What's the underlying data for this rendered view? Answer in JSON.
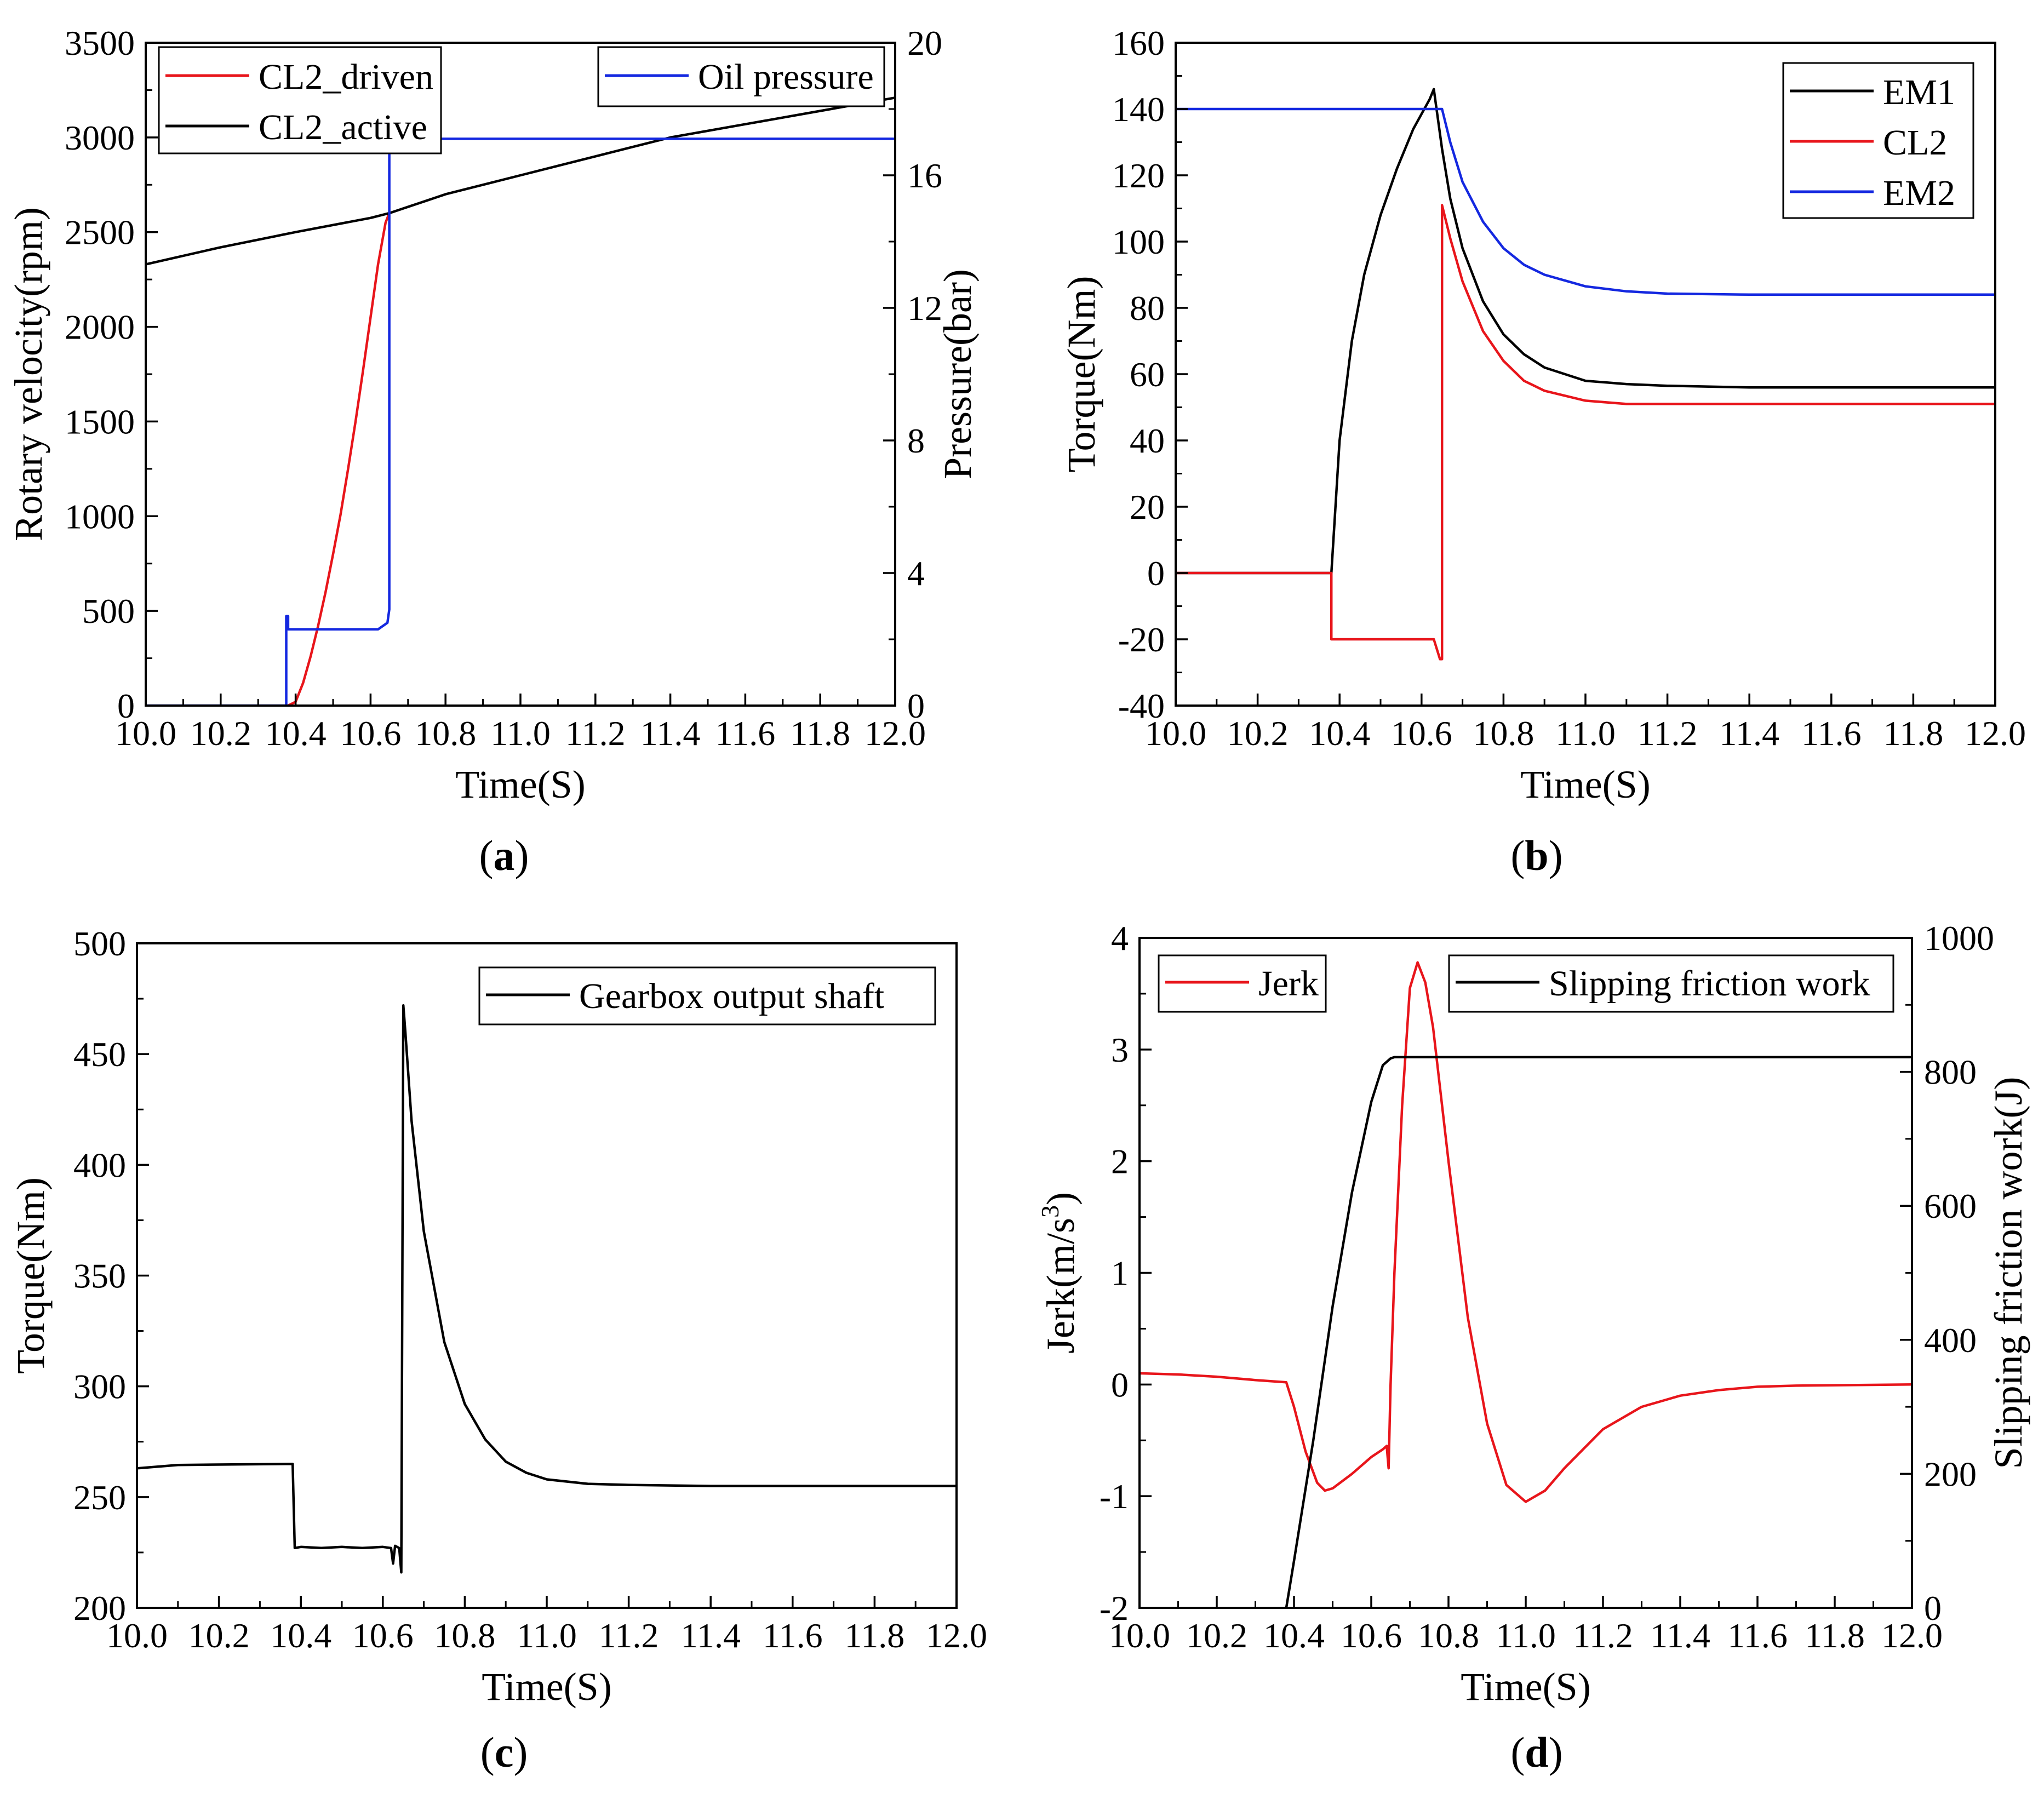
{
  "chart_data": [
    {
      "id": "a",
      "type": "line",
      "caption_letter": "a",
      "xlabel": "Time(S)",
      "xlim": [
        10.0,
        12.0
      ],
      "xticks": [
        "10.0",
        "10.2",
        "10.4",
        "10.6",
        "10.8",
        "11.0",
        "11.2",
        "11.4",
        "11.6",
        "11.8",
        "12.0"
      ],
      "ylabel": "Rotary velocity(rpm)",
      "ylim": [
        0,
        3500
      ],
      "yticks": [
        "0",
        "500",
        "1000",
        "1500",
        "2000",
        "2500",
        "3000",
        "3500"
      ],
      "y2label": "Pressure(bar)",
      "y2lim": [
        0,
        20
      ],
      "y2ticks": [
        "0",
        "4",
        "8",
        "12",
        "16",
        "20"
      ],
      "series": [
        {
          "name": "CL2_driven",
          "color": "#e8151b",
          "axis": "y",
          "x": [
            10.38,
            10.4,
            10.42,
            10.44,
            10.46,
            10.48,
            10.5,
            10.52,
            10.54,
            10.56,
            10.58,
            10.6,
            10.62,
            10.64,
            10.65
          ],
          "y": [
            0,
            20,
            120,
            260,
            420,
            600,
            800,
            1010,
            1250,
            1500,
            1770,
            2050,
            2330,
            2550,
            2600
          ]
        },
        {
          "name": "CL2_active",
          "color": "#000000",
          "axis": "y",
          "x": [
            10.0,
            10.2,
            10.4,
            10.6,
            10.65,
            10.8,
            11.0,
            11.2,
            11.4,
            11.6,
            11.8,
            12.0
          ],
          "y": [
            2330,
            2420,
            2500,
            2575,
            2600,
            2700,
            2800,
            2900,
            3000,
            3070,
            3140,
            3210
          ]
        },
        {
          "name": "Oil pressure",
          "color": "#1428e0",
          "axis": "y2",
          "x": [
            10.0,
            10.375,
            10.375,
            10.38,
            10.38,
            10.62,
            10.645,
            10.65,
            10.65,
            12.0
          ],
          "y": [
            0,
            0,
            2.7,
            2.7,
            2.3,
            2.3,
            2.5,
            2.9,
            17.1,
            17.1
          ]
        }
      ]
    },
    {
      "id": "b",
      "type": "line",
      "caption_letter": "b",
      "xlabel": "Time(S)",
      "xlim": [
        10.0,
        12.0
      ],
      "xticks": [
        "10.0",
        "10.2",
        "10.4",
        "10.6",
        "10.8",
        "11.0",
        "11.2",
        "11.4",
        "11.6",
        "11.8",
        "12.0"
      ],
      "ylabel": "Torque(Nm)",
      "ylim": [
        -40,
        160
      ],
      "yticks": [
        "-40",
        "-20",
        "0",
        "20",
        "40",
        "60",
        "80",
        "100",
        "120",
        "140",
        "160"
      ],
      "series": [
        {
          "name": "EM1",
          "color": "#000000",
          "x": [
            10.0,
            10.38,
            10.4,
            10.43,
            10.46,
            10.5,
            10.54,
            10.58,
            10.62,
            10.63,
            10.65,
            10.67,
            10.7,
            10.75,
            10.8,
            10.85,
            10.9,
            11.0,
            11.1,
            11.2,
            11.4,
            12.0
          ],
          "y": [
            0,
            0,
            40,
            70,
            90,
            108,
            122,
            134,
            143,
            146,
            128,
            113,
            98,
            82,
            72,
            66,
            62,
            58,
            57,
            56.5,
            56,
            56
          ]
        },
        {
          "name": "CL2",
          "color": "#e8151b",
          "x": [
            10.0,
            10.38,
            10.38,
            10.63,
            10.645,
            10.65,
            10.65,
            10.67,
            10.7,
            10.75,
            10.8,
            10.85,
            10.9,
            11.0,
            11.1,
            11.2,
            11.4,
            12.0
          ],
          "y": [
            0,
            0,
            -20,
            -20,
            -26,
            -26,
            111,
            101,
            88,
            73,
            64,
            58,
            55,
            52,
            51,
            51,
            51,
            51
          ]
        },
        {
          "name": "EM2",
          "color": "#1428e0",
          "x": [
            10.0,
            10.65,
            10.67,
            10.7,
            10.75,
            10.8,
            10.85,
            10.9,
            11.0,
            11.1,
            11.2,
            11.4,
            12.0
          ],
          "y": [
            140,
            140,
            130,
            118,
            106,
            98,
            93,
            90,
            86.5,
            85,
            84.3,
            84,
            84
          ]
        }
      ]
    },
    {
      "id": "c",
      "type": "line",
      "caption_letter": "c",
      "xlabel": "Time(S)",
      "xlim": [
        10.0,
        12.0
      ],
      "xticks": [
        "10.0",
        "10.2",
        "10.4",
        "10.6",
        "10.8",
        "11.0",
        "11.2",
        "11.4",
        "11.6",
        "11.8",
        "12.0"
      ],
      "ylabel": "Torque(Nm)",
      "ylim": [
        200,
        500
      ],
      "yticks": [
        "200",
        "250",
        "300",
        "350",
        "400",
        "450",
        "500"
      ],
      "series": [
        {
          "name": "Gearbox output shaft",
          "color": "#000000",
          "x": [
            10.0,
            10.1,
            10.38,
            10.385,
            10.4,
            10.45,
            10.5,
            10.55,
            10.6,
            10.62,
            10.625,
            10.63,
            10.64,
            10.645,
            10.65,
            10.655,
            10.67,
            10.7,
            10.75,
            10.8,
            10.85,
            10.9,
            10.95,
            11.0,
            11.1,
            11.2,
            11.4,
            12.0
          ],
          "y": [
            263,
            264.5,
            265,
            227,
            227.5,
            227,
            227.5,
            227,
            227.5,
            227,
            220,
            228,
            227,
            216,
            472,
            460,
            420,
            370,
            320,
            292,
            276,
            266,
            261,
            258,
            256,
            255.5,
            255,
            255
          ]
        }
      ]
    },
    {
      "id": "d",
      "type": "line",
      "caption_letter": "d",
      "xlabel": "Time(S)",
      "xlim": [
        10.0,
        12.0
      ],
      "xticks": [
        "10.0",
        "10.2",
        "10.4",
        "10.6",
        "10.8",
        "11.0",
        "11.2",
        "11.4",
        "11.6",
        "11.8",
        "12.0"
      ],
      "ylabel": "Jerk(m/s",
      "ylabel_sup": "3",
      "ylabel_end": ")",
      "ylim": [
        -2,
        4
      ],
      "yticks": [
        "-2",
        "-1",
        "0",
        "1",
        "2",
        "3",
        "4"
      ],
      "y2label": "Slipping friction work(J)",
      "y2lim": [
        0,
        1000
      ],
      "y2ticks": [
        "0",
        "200",
        "400",
        "600",
        "800",
        "1000"
      ],
      "series": [
        {
          "name": "Jerk",
          "color": "#e8151b",
          "axis": "y",
          "x": [
            10.0,
            10.1,
            10.2,
            10.3,
            10.38,
            10.4,
            10.43,
            10.46,
            10.48,
            10.5,
            10.55,
            10.6,
            10.63,
            10.64,
            10.645,
            10.65,
            10.66,
            10.68,
            10.7,
            10.72,
            10.74,
            10.76,
            10.8,
            10.85,
            10.9,
            10.95,
            11.0,
            11.05,
            11.1,
            11.2,
            11.3,
            11.4,
            11.5,
            11.6,
            11.7,
            12.0
          ],
          "y": [
            0.1,
            0.09,
            0.07,
            0.04,
            0.02,
            -0.2,
            -0.6,
            -0.88,
            -0.95,
            -0.93,
            -0.8,
            -0.65,
            -0.58,
            -0.55,
            -0.75,
            0.0,
            1.0,
            2.5,
            3.55,
            3.78,
            3.6,
            3.2,
            2.0,
            0.6,
            -0.35,
            -0.9,
            -1.05,
            -0.95,
            -0.75,
            -0.4,
            -0.2,
            -0.1,
            -0.05,
            -0.02,
            -0.01,
            0.0
          ]
        },
        {
          "name": "Slipping friction work",
          "color": "#000000",
          "axis": "y2",
          "x": [
            10.38,
            10.4,
            10.45,
            10.5,
            10.55,
            10.6,
            10.63,
            10.65,
            10.66,
            12.0
          ],
          "y": [
            0,
            70,
            250,
            450,
            620,
            755,
            810,
            820,
            822,
            822
          ]
        }
      ]
    }
  ]
}
